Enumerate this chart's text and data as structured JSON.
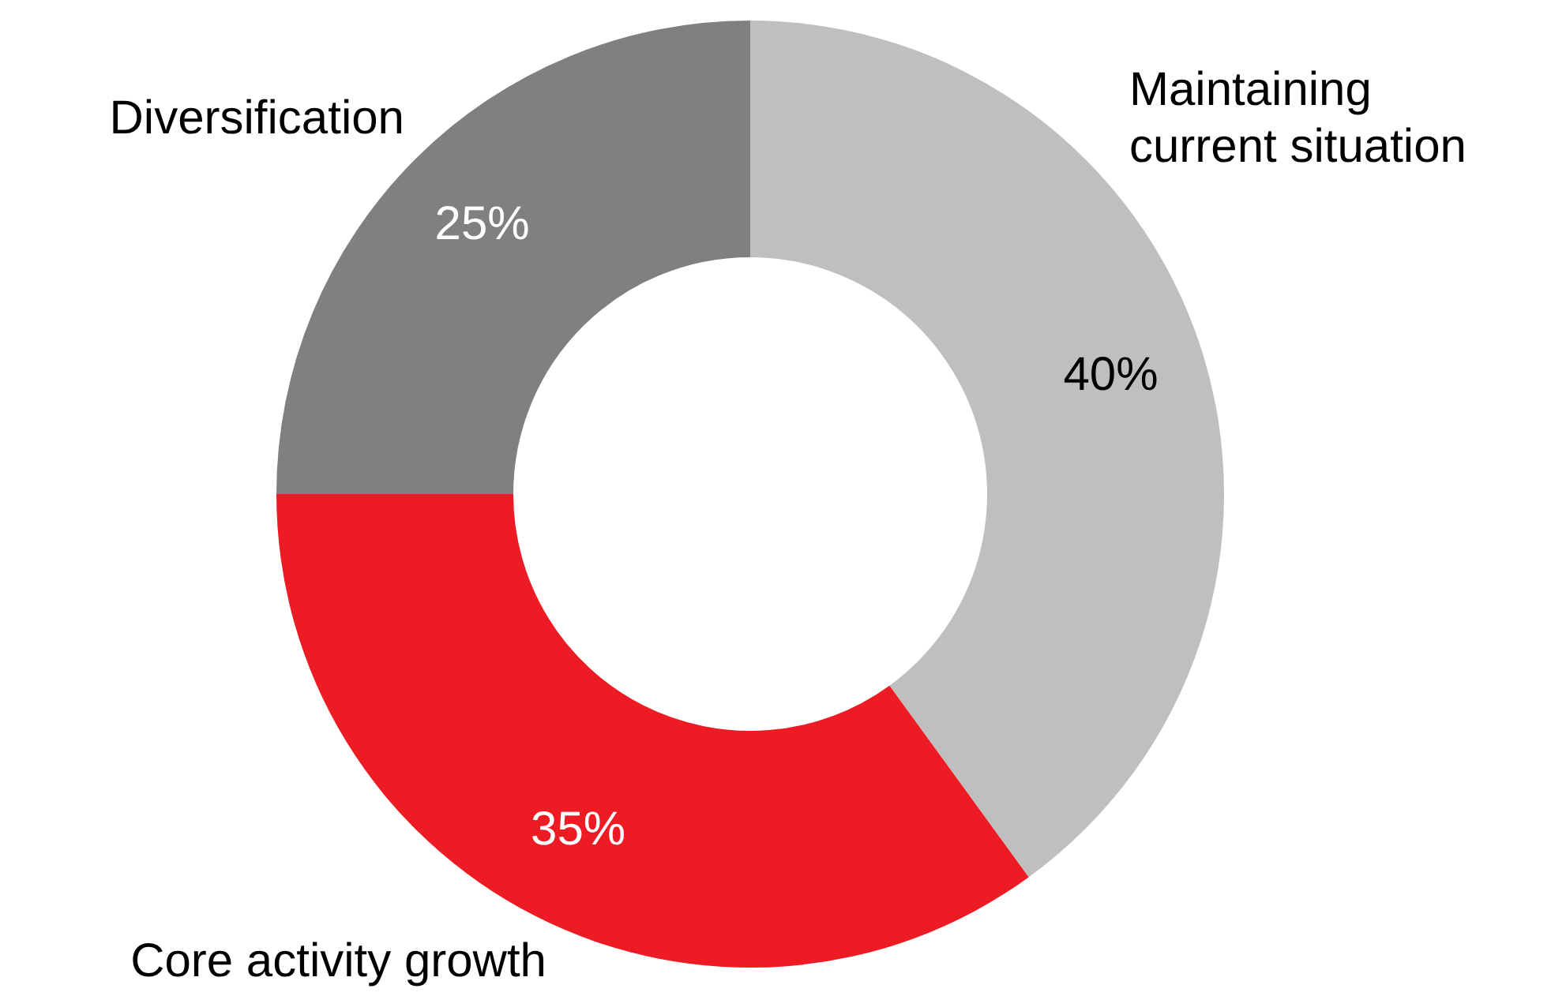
{
  "chart_data": {
    "type": "donut",
    "categories": [
      "Maintaining current situation",
      "Core activity growth",
      "Diversification"
    ],
    "values": [
      40,
      35,
      25
    ],
    "colors": [
      "#bfbfbf",
      "#ed1c24",
      "#808080"
    ],
    "value_labels": [
      "40%",
      "35%",
      "25%"
    ],
    "legend": false
  }
}
